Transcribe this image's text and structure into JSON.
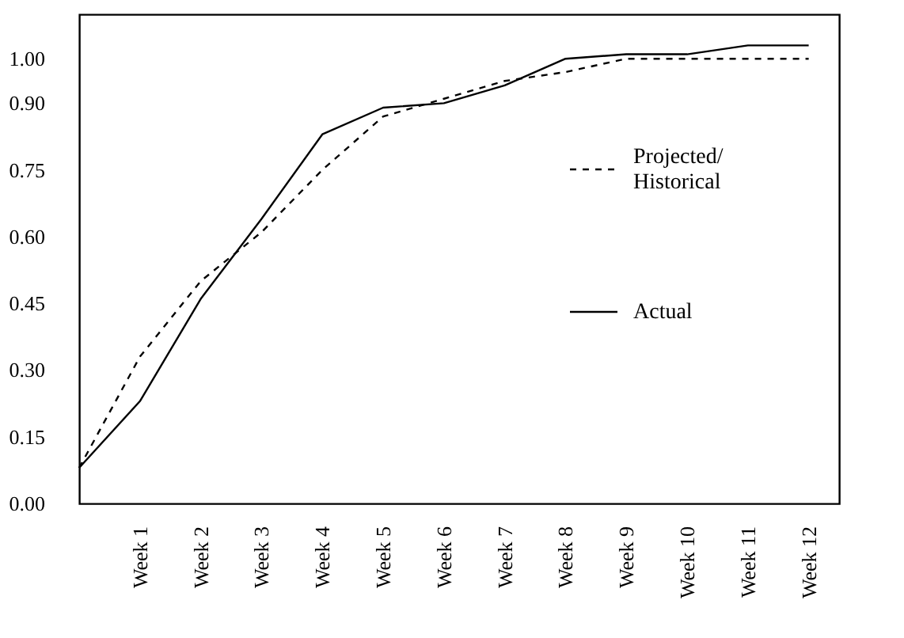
{
  "chart_data": {
    "type": "line",
    "categories": [
      null,
      "Week  1",
      "Week  2",
      "Week  3",
      "Week  4",
      "Week  5",
      "Week  6",
      "Week  7",
      "Week  8",
      "Week  9",
      "Week 10",
      "Week 11",
      "Week 12"
    ],
    "series": [
      {
        "name": "Projected/\nHistorical",
        "color": "#000000",
        "line_style": "dashed",
        "values": [
          0.08,
          0.33,
          0.5,
          0.61,
          0.75,
          0.87,
          0.91,
          0.95,
          0.97,
          1.0,
          1.0,
          1.0,
          1.0
        ]
      },
      {
        "name": "Actual",
        "color": "#000000",
        "line_style": "solid",
        "values": [
          0.08,
          0.23,
          0.46,
          0.64,
          0.83,
          0.89,
          0.9,
          0.94,
          1.0,
          1.01,
          1.01,
          1.03,
          1.03
        ]
      }
    ],
    "ylim": [
      0,
      1.1
    ],
    "yticks": [
      {
        "value": 0,
        "label": "0.00"
      },
      {
        "value": 0.15,
        "label": "0.15"
      },
      {
        "value": 0.3,
        "label": "0.30"
      },
      {
        "value": 0.45,
        "label": "0.45"
      },
      {
        "value": 0.6,
        "label": "0.60"
      },
      {
        "value": 0.75,
        "label": "0.75"
      },
      {
        "value": 0.9,
        "label": "0.90"
      },
      {
        "value": 1.0,
        "label": "1.00"
      }
    ],
    "grid": false,
    "legend": "right",
    "marker": "none"
  }
}
